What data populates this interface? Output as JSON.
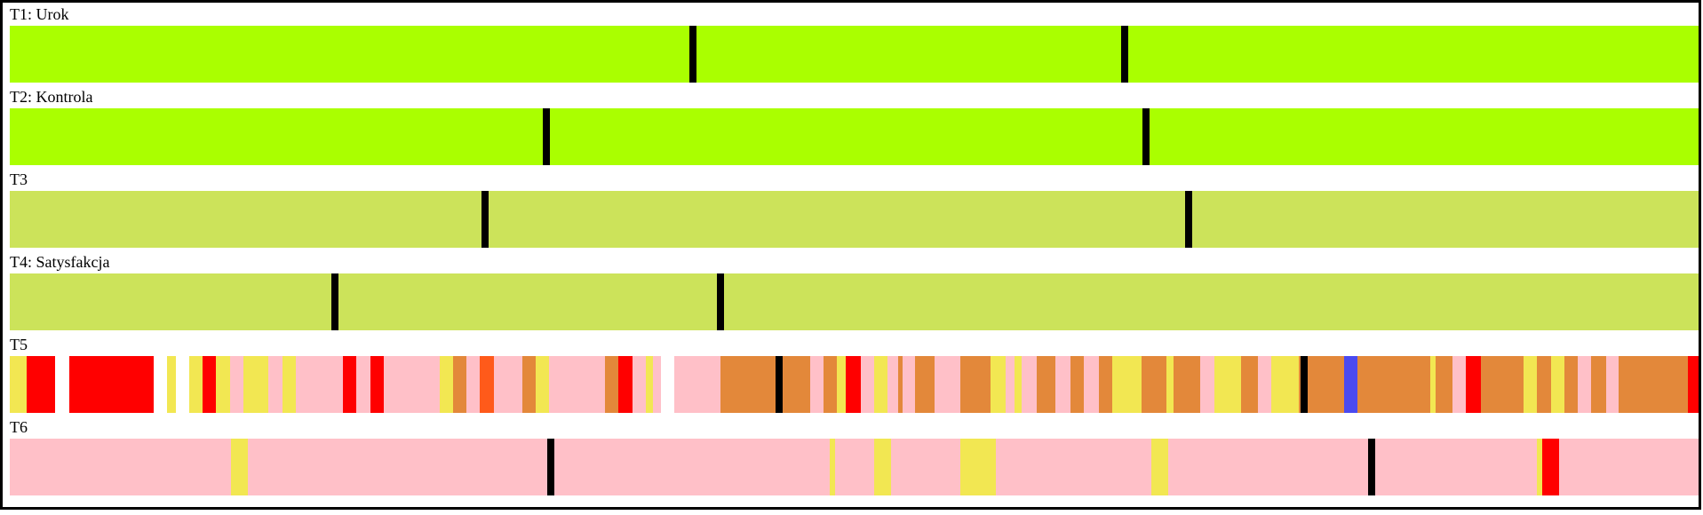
{
  "colors": {
    "lime": "#aaff00",
    "olive": "#cce35a",
    "pink": "#ffc0c8",
    "orange": "#e3883a",
    "yellow": "#f2e752",
    "red": "#ff0000",
    "deep_orange": "#ff5a1a",
    "blue": "#4a4aef",
    "white": "#ffffff",
    "marker": "#000000"
  },
  "tracks": [
    {
      "label": "T1: Urok",
      "segments": [
        {
          "start": 0.0,
          "end": 1.0,
          "color": "lime"
        }
      ],
      "markers": [
        0.404,
        0.659
      ]
    },
    {
      "label": "T2: Kontrola",
      "segments": [
        {
          "start": 0.0,
          "end": 1.0,
          "color": "lime"
        }
      ],
      "markers": [
        0.317,
        0.672
      ]
    },
    {
      "label": "T3",
      "segments": [
        {
          "start": 0.0,
          "end": 1.0,
          "color": "olive"
        }
      ],
      "markers": [
        0.281,
        0.697
      ]
    },
    {
      "label": "T4: Satysfakcja",
      "segments": [
        {
          "start": 0.0,
          "end": 1.0,
          "color": "olive"
        }
      ],
      "markers": [
        0.192,
        0.42
      ]
    },
    {
      "label": "T5",
      "segments": [
        {
          "start": 0.0,
          "end": 0.01,
          "color": "yellow"
        },
        {
          "start": 0.01,
          "end": 0.027,
          "color": "red"
        },
        {
          "start": 0.027,
          "end": 0.035,
          "color": "white"
        },
        {
          "start": 0.035,
          "end": 0.085,
          "color": "red"
        },
        {
          "start": 0.085,
          "end": 0.093,
          "color": "white"
        },
        {
          "start": 0.093,
          "end": 0.098,
          "color": "yellow"
        },
        {
          "start": 0.098,
          "end": 0.106,
          "color": "white"
        },
        {
          "start": 0.106,
          "end": 0.114,
          "color": "yellow"
        },
        {
          "start": 0.114,
          "end": 0.122,
          "color": "red"
        },
        {
          "start": 0.122,
          "end": 0.13,
          "color": "yellow"
        },
        {
          "start": 0.13,
          "end": 0.138,
          "color": "pink"
        },
        {
          "start": 0.138,
          "end": 0.153,
          "color": "yellow"
        },
        {
          "start": 0.153,
          "end": 0.161,
          "color": "pink"
        },
        {
          "start": 0.161,
          "end": 0.169,
          "color": "yellow"
        },
        {
          "start": 0.169,
          "end": 0.197,
          "color": "pink"
        },
        {
          "start": 0.197,
          "end": 0.205,
          "color": "red"
        },
        {
          "start": 0.205,
          "end": 0.213,
          "color": "pink"
        },
        {
          "start": 0.213,
          "end": 0.221,
          "color": "red"
        },
        {
          "start": 0.221,
          "end": 0.254,
          "color": "pink"
        },
        {
          "start": 0.254,
          "end": 0.262,
          "color": "yellow"
        },
        {
          "start": 0.262,
          "end": 0.27,
          "color": "orange"
        },
        {
          "start": 0.27,
          "end": 0.278,
          "color": "pink"
        },
        {
          "start": 0.278,
          "end": 0.286,
          "color": "deep_orange"
        },
        {
          "start": 0.286,
          "end": 0.303,
          "color": "pink"
        },
        {
          "start": 0.303,
          "end": 0.311,
          "color": "orange"
        },
        {
          "start": 0.311,
          "end": 0.319,
          "color": "yellow"
        },
        {
          "start": 0.319,
          "end": 0.352,
          "color": "pink"
        },
        {
          "start": 0.352,
          "end": 0.36,
          "color": "orange"
        },
        {
          "start": 0.36,
          "end": 0.368,
          "color": "red"
        },
        {
          "start": 0.368,
          "end": 0.376,
          "color": "pink"
        },
        {
          "start": 0.376,
          "end": 0.38,
          "color": "yellow"
        },
        {
          "start": 0.38,
          "end": 0.385,
          "color": "pink"
        },
        {
          "start": 0.385,
          "end": 0.393,
          "color": "white"
        },
        {
          "start": 0.393,
          "end": 0.42,
          "color": "pink"
        },
        {
          "start": 0.42,
          "end": 0.473,
          "color": "orange"
        },
        {
          "start": 0.473,
          "end": 0.481,
          "color": "pink"
        },
        {
          "start": 0.481,
          "end": 0.489,
          "color": "orange"
        },
        {
          "start": 0.489,
          "end": 0.494,
          "color": "yellow"
        },
        {
          "start": 0.494,
          "end": 0.503,
          "color": "red"
        },
        {
          "start": 0.503,
          "end": 0.511,
          "color": "pink"
        },
        {
          "start": 0.511,
          "end": 0.519,
          "color": "yellow"
        },
        {
          "start": 0.519,
          "end": 0.525,
          "color": "pink"
        },
        {
          "start": 0.525,
          "end": 0.528,
          "color": "orange"
        },
        {
          "start": 0.528,
          "end": 0.535,
          "color": "pink"
        },
        {
          "start": 0.535,
          "end": 0.547,
          "color": "orange"
        },
        {
          "start": 0.547,
          "end": 0.562,
          "color": "pink"
        },
        {
          "start": 0.562,
          "end": 0.58,
          "color": "orange"
        },
        {
          "start": 0.58,
          "end": 0.589,
          "color": "yellow"
        },
        {
          "start": 0.589,
          "end": 0.594,
          "color": "pink"
        },
        {
          "start": 0.594,
          "end": 0.598,
          "color": "yellow"
        },
        {
          "start": 0.598,
          "end": 0.607,
          "color": "pink"
        },
        {
          "start": 0.607,
          "end": 0.618,
          "color": "orange"
        },
        {
          "start": 0.618,
          "end": 0.627,
          "color": "pink"
        },
        {
          "start": 0.627,
          "end": 0.635,
          "color": "orange"
        },
        {
          "start": 0.635,
          "end": 0.644,
          "color": "pink"
        },
        {
          "start": 0.644,
          "end": 0.652,
          "color": "orange"
        },
        {
          "start": 0.652,
          "end": 0.669,
          "color": "yellow"
        },
        {
          "start": 0.669,
          "end": 0.684,
          "color": "orange"
        },
        {
          "start": 0.684,
          "end": 0.688,
          "color": "yellow"
        },
        {
          "start": 0.688,
          "end": 0.704,
          "color": "orange"
        },
        {
          "start": 0.704,
          "end": 0.712,
          "color": "pink"
        },
        {
          "start": 0.712,
          "end": 0.728,
          "color": "yellow"
        },
        {
          "start": 0.728,
          "end": 0.738,
          "color": "orange"
        },
        {
          "start": 0.738,
          "end": 0.746,
          "color": "pink"
        },
        {
          "start": 0.746,
          "end": 0.762,
          "color": "yellow"
        },
        {
          "start": 0.762,
          "end": 0.764,
          "color": "orange"
        },
        {
          "start": 0.764,
          "end": 0.789,
          "color": "orange"
        },
        {
          "start": 0.789,
          "end": 0.797,
          "color": "blue"
        },
        {
          "start": 0.797,
          "end": 0.84,
          "color": "orange"
        },
        {
          "start": 0.84,
          "end": 0.843,
          "color": "yellow"
        },
        {
          "start": 0.843,
          "end": 0.853,
          "color": "orange"
        },
        {
          "start": 0.853,
          "end": 0.861,
          "color": "pink"
        },
        {
          "start": 0.861,
          "end": 0.87,
          "color": "red"
        },
        {
          "start": 0.87,
          "end": 0.895,
          "color": "orange"
        },
        {
          "start": 0.895,
          "end": 0.903,
          "color": "yellow"
        },
        {
          "start": 0.903,
          "end": 0.911,
          "color": "orange"
        },
        {
          "start": 0.911,
          "end": 0.919,
          "color": "yellow"
        },
        {
          "start": 0.919,
          "end": 0.927,
          "color": "orange"
        },
        {
          "start": 0.927,
          "end": 0.935,
          "color": "pink"
        },
        {
          "start": 0.935,
          "end": 0.944,
          "color": "orange"
        },
        {
          "start": 0.944,
          "end": 0.951,
          "color": "pink"
        },
        {
          "start": 0.951,
          "end": 0.992,
          "color": "orange"
        },
        {
          "start": 0.992,
          "end": 1.0,
          "color": "red"
        }
      ],
      "markers": [
        0.455,
        0.765
      ]
    },
    {
      "label": "T6",
      "segments": [
        {
          "start": 0.0,
          "end": 0.131,
          "color": "pink"
        },
        {
          "start": 0.131,
          "end": 0.141,
          "color": "yellow"
        },
        {
          "start": 0.141,
          "end": 0.485,
          "color": "pink"
        },
        {
          "start": 0.485,
          "end": 0.488,
          "color": "yellow"
        },
        {
          "start": 0.488,
          "end": 0.511,
          "color": "pink"
        },
        {
          "start": 0.511,
          "end": 0.521,
          "color": "yellow"
        },
        {
          "start": 0.521,
          "end": 0.562,
          "color": "pink"
        },
        {
          "start": 0.562,
          "end": 0.583,
          "color": "yellow"
        },
        {
          "start": 0.583,
          "end": 0.675,
          "color": "pink"
        },
        {
          "start": 0.675,
          "end": 0.685,
          "color": "yellow"
        },
        {
          "start": 0.685,
          "end": 0.903,
          "color": "pink"
        },
        {
          "start": 0.903,
          "end": 0.906,
          "color": "yellow"
        },
        {
          "start": 0.906,
          "end": 0.916,
          "color": "red"
        },
        {
          "start": 0.916,
          "end": 1.0,
          "color": "pink"
        }
      ],
      "markers": [
        0.32,
        0.805
      ]
    }
  ]
}
